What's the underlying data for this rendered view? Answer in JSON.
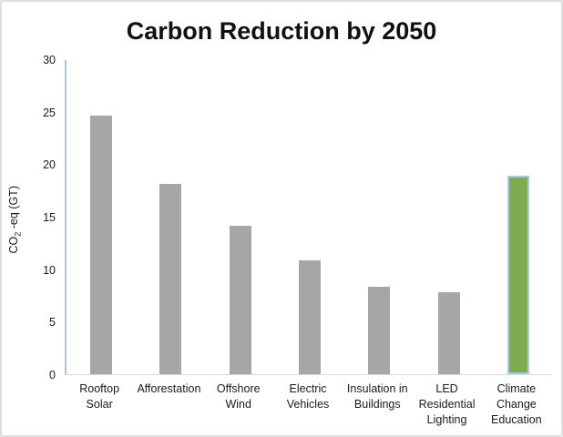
{
  "chart_data": {
    "type": "bar",
    "title": "Carbon Reduction by 2050",
    "ylabel": {
      "prefix": "CO",
      "sub": "2",
      "suffix": " -eq (GT)"
    },
    "categories": [
      "Rooftop\nSolar",
      "Afforestation",
      "Offshore\nWind",
      "Electric\nVehicles",
      "Insulation in\nBuildings",
      "LED\nResidential\nLighting",
      "Climate\nChange\nEducation"
    ],
    "values": [
      24.6,
      18.1,
      14.1,
      10.8,
      8.3,
      7.8,
      18.9
    ],
    "ylim": [
      0,
      30
    ],
    "yticks": [
      0,
      5,
      10,
      15,
      20,
      25,
      30
    ],
    "grid": false,
    "legend": "none",
    "colors": {
      "bar": "#a6a6a6",
      "highlight": "#7eac4f",
      "highlight_border": "#a9c7e7",
      "axis_line": "#a9c4e2",
      "baseline": "#d9d9d9",
      "text": "#1a1a1a"
    },
    "highlight_index": 6
  }
}
